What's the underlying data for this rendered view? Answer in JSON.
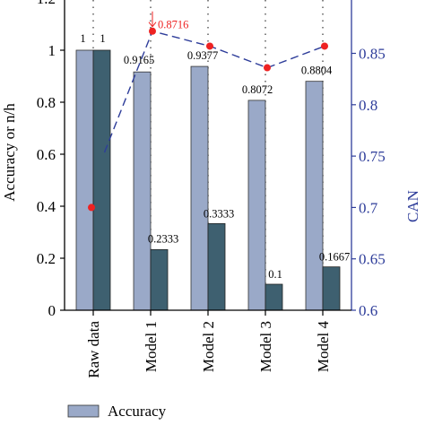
{
  "chart_data": {
    "type": "bar",
    "categories": [
      "Raw data",
      "Model 1",
      "Model 2",
      "Model 3",
      "Model 4"
    ],
    "series": [
      {
        "name": "Accuracy",
        "axis": "left",
        "color": "#9aa9c8",
        "values": [
          1,
          0.9165,
          0.9377,
          0.8072,
          0.8804
        ],
        "labels": [
          "1",
          "0.9165",
          "0.9377",
          "0.8072",
          "0.8804"
        ]
      },
      {
        "name": "",
        "axis": "left",
        "color": "#3e6070",
        "values": [
          1,
          0.2333,
          0.3333,
          0.1,
          0.1667
        ],
        "labels": [
          "1",
          "0.2333",
          "0.3333",
          "0.1",
          "0.1667"
        ]
      },
      {
        "name": "",
        "type": "line",
        "axis": "right",
        "color": "#ee2222",
        "line_color": "#2e3d9a",
        "values": [
          0.7,
          0.8716,
          0.857,
          0.836,
          0.857
        ],
        "annotation": "0.8716"
      }
    ],
    "left_axis": {
      "label": "Accuracy or n/h",
      "ylim": [
        0,
        1.2
      ],
      "ticks": [
        "0",
        "0.2",
        "0.4",
        "0.6",
        "0.8",
        "1",
        "1.2"
      ]
    },
    "right_axis": {
      "label": "CAN",
      "ylim": [
        0.6,
        0.9
      ],
      "ticks": [
        "0.6",
        "0.65",
        "0.7",
        "0.75",
        "0.8",
        "0.85"
      ],
      "color": "#2e3d9a"
    },
    "grid": "vertical-dotted",
    "legend": {
      "position": "bottom-left",
      "entries": [
        "Accuracy"
      ]
    }
  }
}
